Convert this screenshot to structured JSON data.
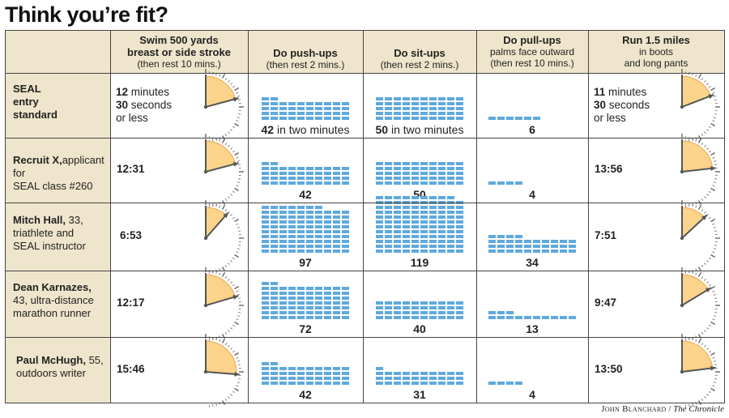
{
  "title": "Think you’re fit?",
  "credit": {
    "author": "John Blanchard",
    "sep": " / ",
    "org": "The Chronicle"
  },
  "chart_data": {
    "type": "table",
    "columns": [
      {
        "key": "swim",
        "main": "Swim 500 yards\nbreast or side stroke",
        "sub": "(then rest 10 mins.)"
      },
      {
        "key": "pushups",
        "main": "Do push-ups",
        "sub": "(then rest 2 mins.)"
      },
      {
        "key": "situps",
        "main": "Do sit-ups",
        "sub": "(then rest 2 mins.)"
      },
      {
        "key": "pullups",
        "main": "Do pull-ups",
        "sub": "palms face outward\n(then rest 10 mins.)"
      },
      {
        "key": "run",
        "main": "Run 1.5 miles",
        "sub": "in boots\nand long pants"
      }
    ],
    "rows": [
      {
        "name": "SEAL\nentry\nstandard",
        "desc": "",
        "swim": "12:30",
        "swim_text": [
          "12",
          " minutes",
          "30",
          " seconds",
          "or less"
        ],
        "pushups": 42,
        "pushups_label": "42",
        "pushups_extra": " in two minutes",
        "situps": 50,
        "situps_label": "50",
        "situps_extra": " in two minutes",
        "pullups": 6,
        "pullups_label": "6",
        "run": "11:30",
        "run_text": [
          "11",
          " minutes",
          "30",
          " seconds",
          "or less"
        ]
      },
      {
        "name": "Recruit X,",
        "desc": "applicant for\nSEAL class #260",
        "swim": "12:31",
        "pushups": 42,
        "pushups_label": "42",
        "situps": 50,
        "situps_label": "50",
        "pullups": 4,
        "pullups_label": "4",
        "run": "13:56"
      },
      {
        "name": "Mitch Hall,",
        "desc": " 33,\ntriathlete and\nSEAL instructor",
        "swim": "6:53",
        "pushups": 97,
        "pushups_label": "97",
        "situps": 119,
        "situps_label": "119",
        "pullups": 34,
        "pullups_label": "34",
        "run": "7:51"
      },
      {
        "name": "Dean Karnazes,",
        "desc": "\n43, ultra-distance\nmarathon runner",
        "swim": "12:17",
        "pushups": 72,
        "pushups_label": "72",
        "situps": 40,
        "situps_label": "40",
        "pullups": 13,
        "pullups_label": "13",
        "run": "9:47"
      },
      {
        "name": "Paul McHugh,",
        "desc": " 55,\noutdoors writer",
        "swim": "15:46",
        "pushups": 42,
        "pushups_label": "42",
        "situps": 31,
        "situps_label": "31",
        "pullups": 4,
        "pullups_label": "4",
        "run": "13:50"
      }
    ]
  },
  "colors": {
    "header_bg": "#efe5cc",
    "bar": "#5ea9dd",
    "clock_face": "#fbd38a",
    "clock_edge": "#e8a94e",
    "hand": "#555555",
    "grid": "#444444"
  }
}
